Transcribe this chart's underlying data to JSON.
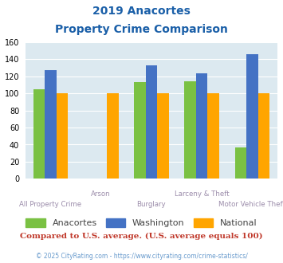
{
  "title_line1": "2019 Anacortes",
  "title_line2": "Property Crime Comparison",
  "categories": [
    "All Property Crime",
    "Arson",
    "Burglary",
    "Larceny & Theft",
    "Motor Vehicle Theft"
  ],
  "anacortes": [
    105,
    0,
    113,
    114,
    37
  ],
  "washington": [
    127,
    0,
    133,
    123,
    146
  ],
  "national": [
    100,
    100,
    100,
    100,
    100
  ],
  "color_anacortes": "#7ac143",
  "color_washington": "#4472c4",
  "color_national": "#ffa500",
  "ylim": [
    0,
    160
  ],
  "yticks": [
    0,
    20,
    40,
    60,
    80,
    100,
    120,
    140,
    160
  ],
  "plot_bg_color": "#dce9f0",
  "grid_color": "#ffffff",
  "title_color": "#1a5fa8",
  "xlabel_color": "#9b8caa",
  "legend_label_color": "#444444",
  "footnote1": "Compared to U.S. average. (U.S. average equals 100)",
  "footnote2": "© 2025 CityRating.com - https://www.cityrating.com/crime-statistics/",
  "footnote1_color": "#c0392b",
  "footnote2_color": "#6699cc"
}
